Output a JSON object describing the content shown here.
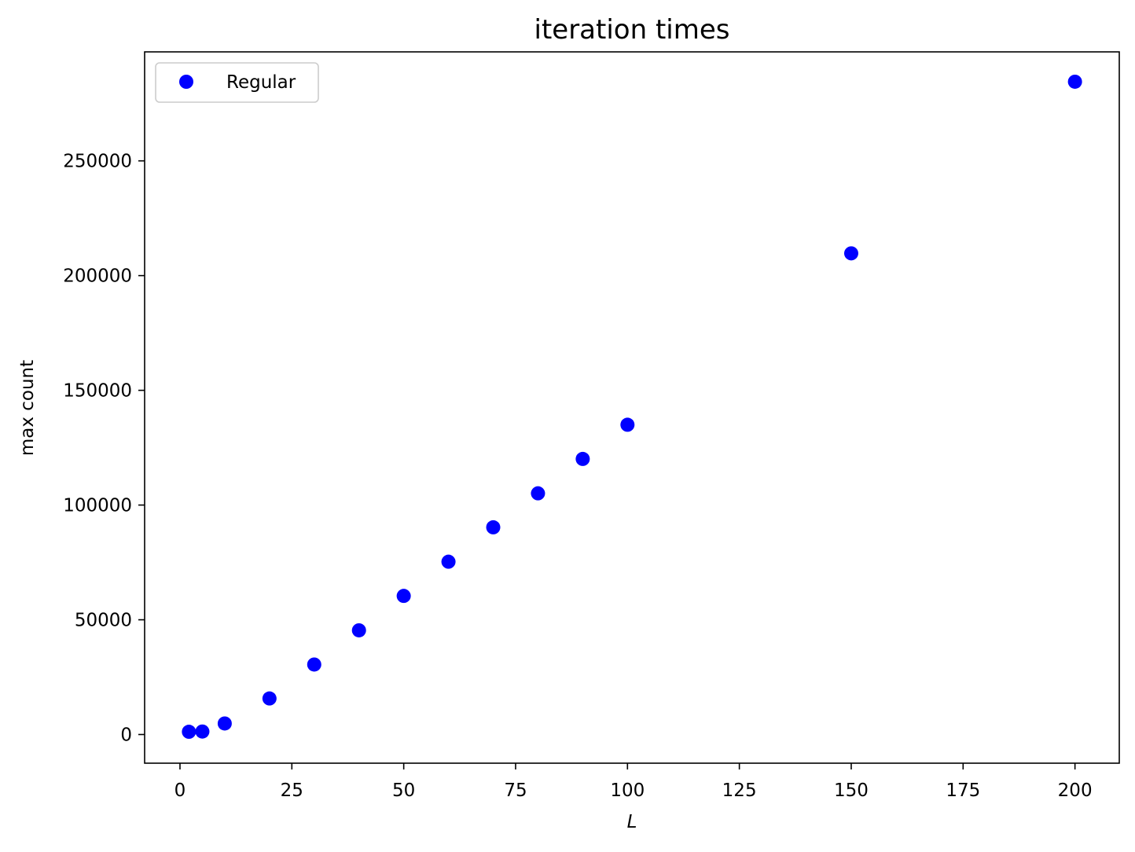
{
  "chart_data": {
    "type": "scatter",
    "title": "iteration times",
    "xlabel": "L",
    "ylabel": "max count",
    "xlim": [
      -7.9,
      209.9
    ],
    "ylim": [
      -12500,
      297500
    ],
    "xticks": [
      0,
      25,
      50,
      75,
      100,
      125,
      150,
      175,
      200
    ],
    "yticks": [
      0,
      50000,
      100000,
      150000,
      200000,
      250000
    ],
    "xtick_labels": [
      "0",
      "25",
      "50",
      "75",
      "100",
      "125",
      "150",
      "175",
      "200"
    ],
    "ytick_labels": [
      "0",
      "50000",
      "100000",
      "150000",
      "200000",
      "250000"
    ],
    "grid": false,
    "legend_position": "upper-left",
    "series": [
      {
        "name": "Regular",
        "color": "#0000ff",
        "marker": "circle",
        "points": [
          {
            "x": 2,
            "y": 1200
          },
          {
            "x": 5,
            "y": 1300
          },
          {
            "x": 10,
            "y": 4800
          },
          {
            "x": 20,
            "y": 15700
          },
          {
            "x": 30,
            "y": 30500
          },
          {
            "x": 40,
            "y": 45400
          },
          {
            "x": 50,
            "y": 60400
          },
          {
            "x": 60,
            "y": 75300
          },
          {
            "x": 70,
            "y": 90300
          },
          {
            "x": 80,
            "y": 105100
          },
          {
            "x": 90,
            "y": 120100
          },
          {
            "x": 100,
            "y": 135000
          },
          {
            "x": 150,
            "y": 209700
          },
          {
            "x": 200,
            "y": 284500
          }
        ]
      }
    ]
  }
}
